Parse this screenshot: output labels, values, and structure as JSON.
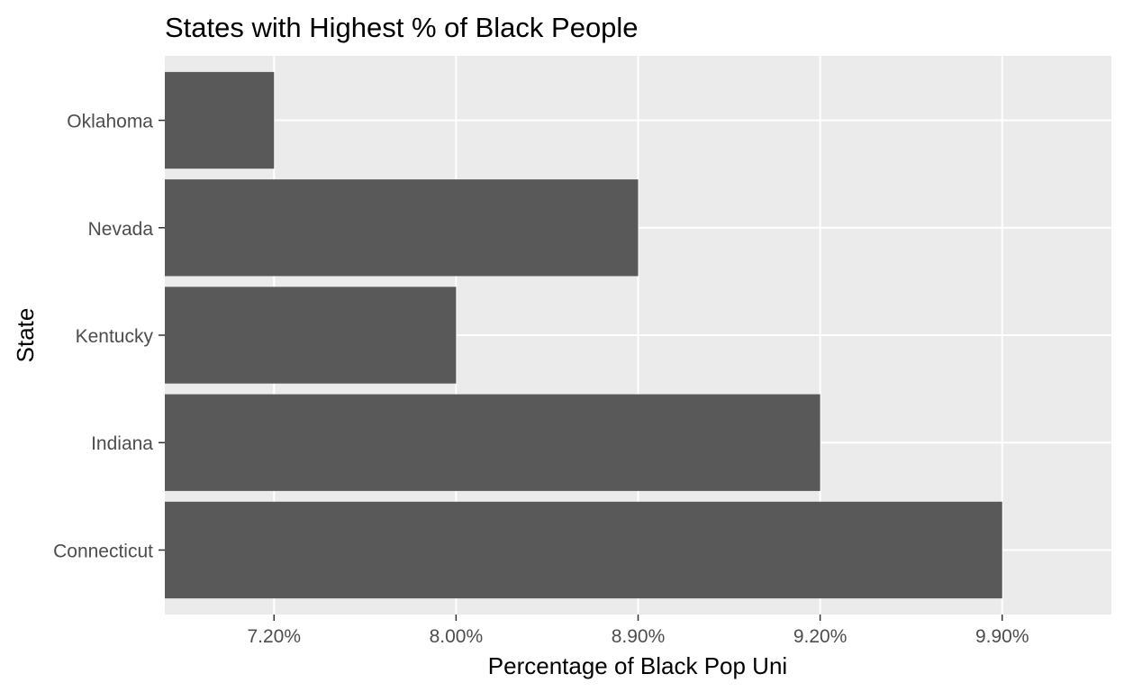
{
  "chart_data": {
    "type": "bar",
    "orientation": "horizontal",
    "title": "States with Highest % of Black People",
    "xlabel": "Percentage of Black Pop Uni",
    "ylabel": "State",
    "categories": [
      "Connecticut",
      "Indiana",
      "Kentucky",
      "Nevada",
      "Oklahoma"
    ],
    "values": [
      "9.90%",
      "9.20%",
      "8.00%",
      "8.90%",
      "7.20%"
    ],
    "x_ticks": [
      "7.20%",
      "8.00%",
      "8.90%",
      "9.20%",
      "9.90%"
    ],
    "x_axis_type": "discrete",
    "bar_color": "#595959",
    "panel_color": "#ebebeb",
    "grid": true,
    "legend": "none"
  }
}
